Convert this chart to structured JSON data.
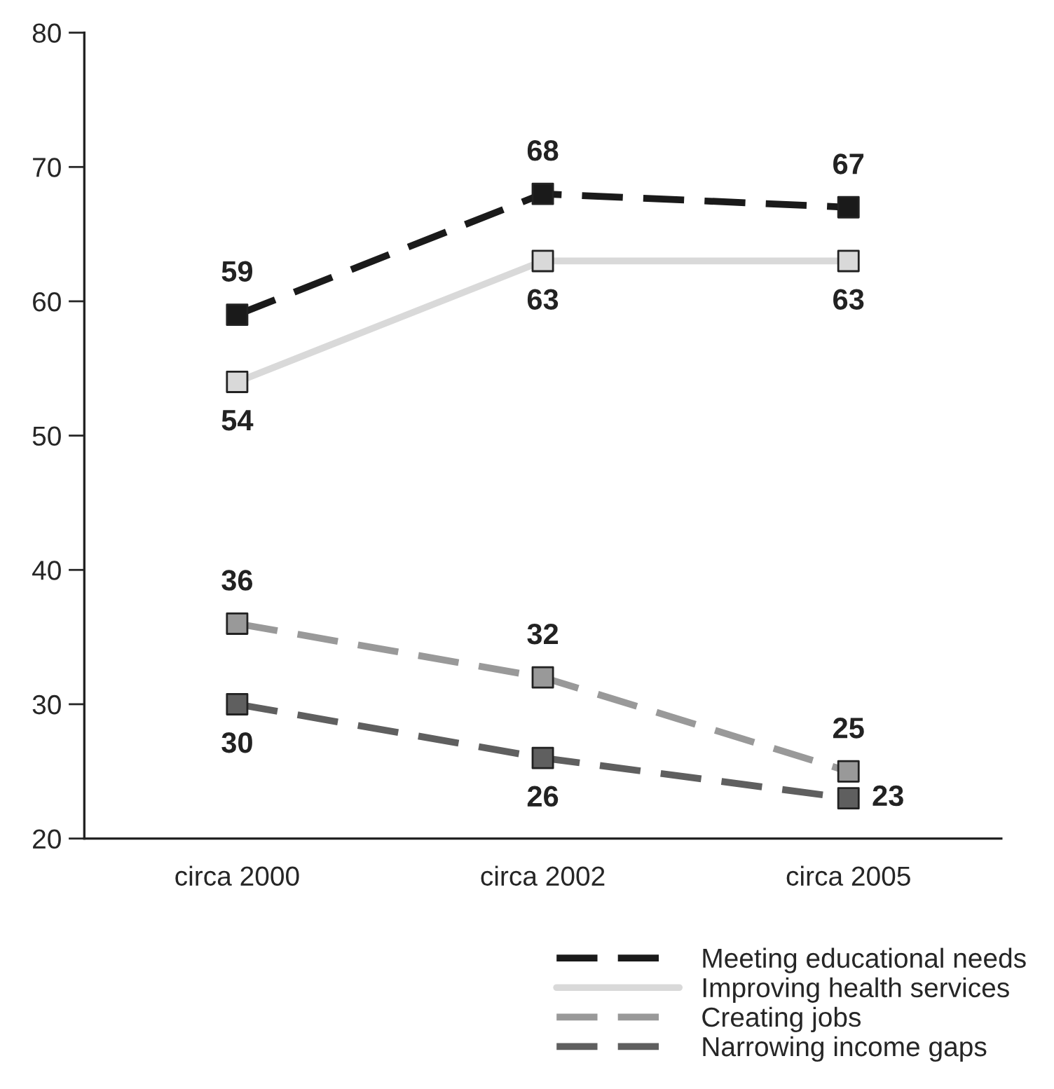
{
  "chart_data": {
    "type": "line",
    "categories": [
      "circa 2000",
      "circa 2002",
      "circa 2005"
    ],
    "series": [
      {
        "name": "Meeting educational needs",
        "color": "#1a1a1a",
        "line_style": "dashed",
        "values": [
          59,
          68,
          67
        ]
      },
      {
        "name": "Improving health services",
        "color": "#d9d9d9",
        "line_style": "solid",
        "values": [
          54,
          63,
          63
        ]
      },
      {
        "name": "Creating jobs",
        "color": "#999999",
        "line_style": "dashed",
        "values": [
          36,
          32,
          25
        ]
      },
      {
        "name": "Narrowing income gaps",
        "color": "#5f5f5f",
        "line_style": "dashed",
        "values": [
          30,
          26,
          23
        ]
      }
    ],
    "ylim": [
      20,
      80
    ],
    "yticks": [
      20,
      30,
      40,
      50,
      60,
      70,
      80
    ],
    "marker": "square",
    "data_labels": true,
    "grid": false,
    "legend": "bottom right"
  }
}
